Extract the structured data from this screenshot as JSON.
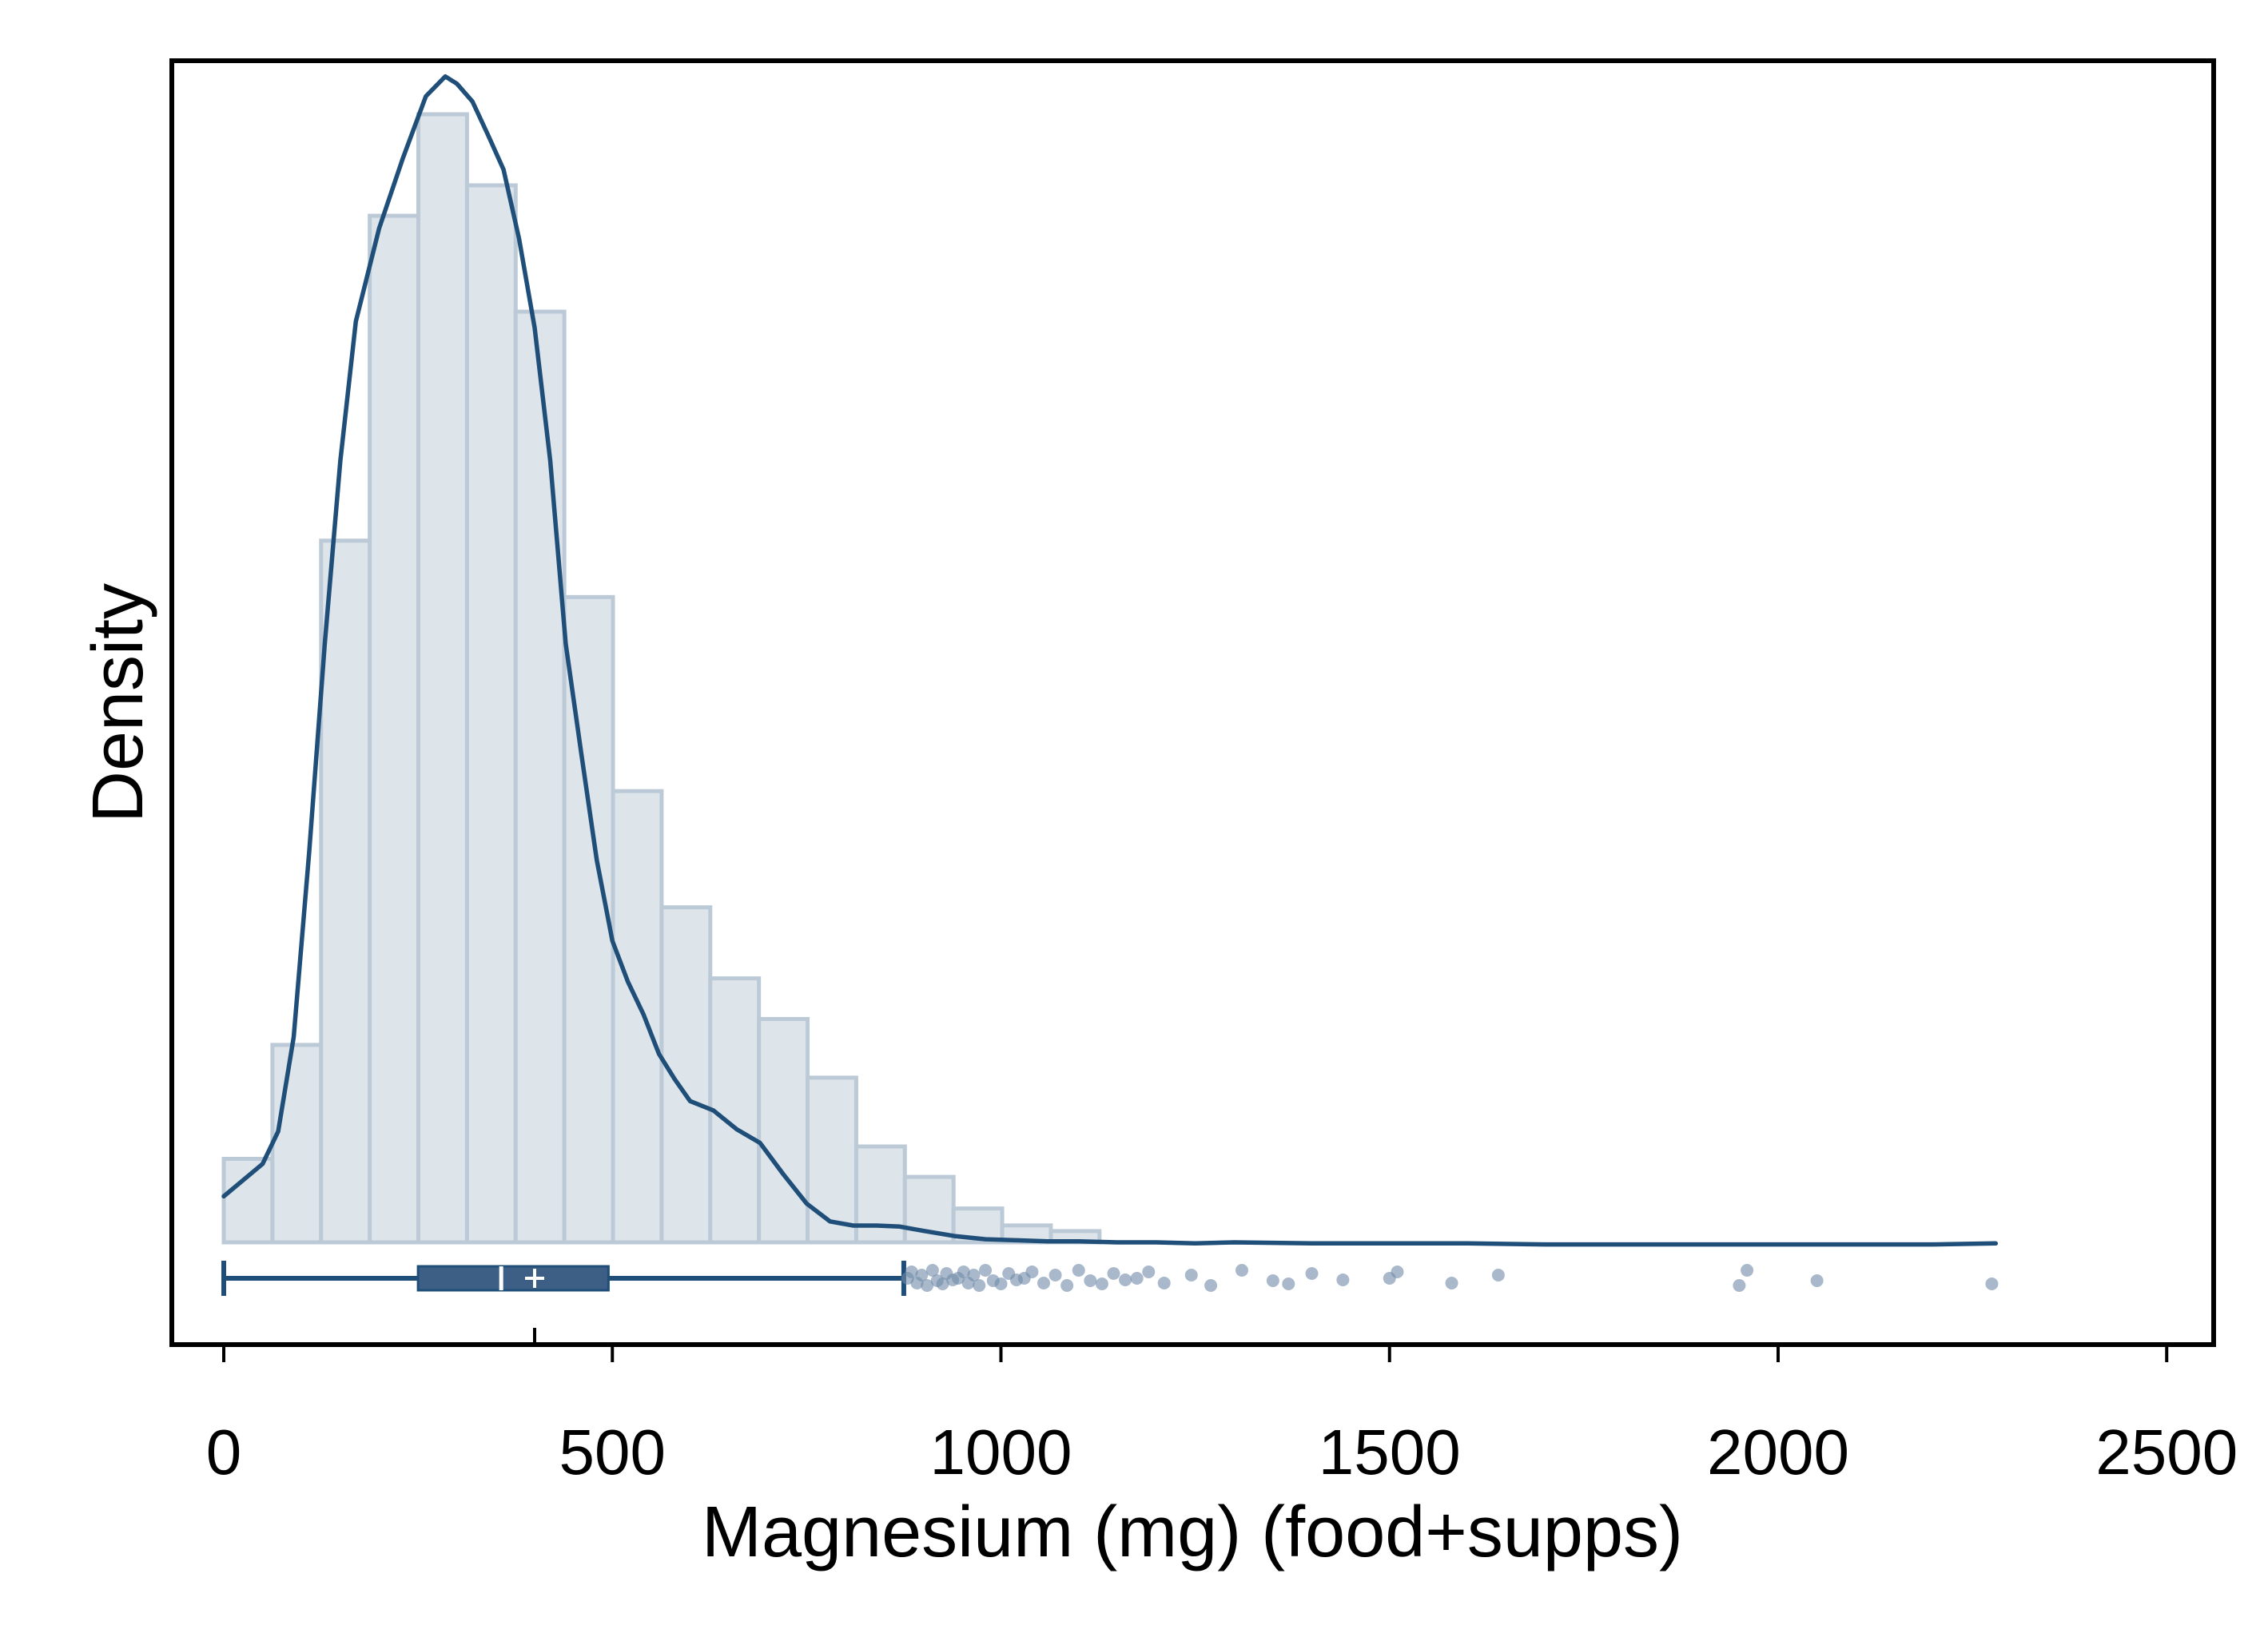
{
  "chart_data": {
    "type": "histogram",
    "title": "",
    "xlabel": "Magnesium (mg) (food+supps)",
    "ylabel": "Density",
    "xlim": [
      -70,
      2560
    ],
    "x_ticks": [
      0,
      500,
      1000,
      1500,
      2000,
      2500
    ],
    "x_tick_labels": [
      "0",
      "500",
      "1000",
      "1500",
      "2000",
      "2500"
    ],
    "y_ticks_shown": false,
    "grid": false,
    "legend": "none",
    "colors": {
      "bar_fill": "#dde4ea",
      "bar_stroke": "#bccad7",
      "line": "#1f4e79",
      "box_fill": "#3d5f86",
      "outlier": "#6f8ba8"
    },
    "histogram": {
      "bin_start": 0,
      "bin_width": 62.6,
      "relative_heights": [
        0.074,
        0.175,
        0.622,
        0.91,
        1.0,
        0.937,
        0.825,
        0.572,
        0.4,
        0.297,
        0.234,
        0.198,
        0.146,
        0.085,
        0.058,
        0.03,
        0.015,
        0.01
      ]
    },
    "density_curve": {
      "x": [
        0,
        50,
        70,
        90,
        110,
        130,
        150,
        170,
        200,
        230,
        260,
        285,
        300,
        320,
        340,
        360,
        380,
        400,
        420,
        440,
        460,
        480,
        500,
        520,
        540,
        560,
        580,
        600,
        630,
        660,
        690,
        720,
        750,
        780,
        810,
        840,
        870,
        900,
        940,
        980,
        1020,
        1060,
        1100,
        1150,
        1200,
        1250,
        1300,
        1400,
        1500,
        1600,
        1700,
        1800,
        1900,
        2000,
        2100,
        2200,
        2280
      ],
      "relative_density": [
        0.044,
        0.075,
        0.106,
        0.196,
        0.374,
        0.572,
        0.747,
        0.88,
        0.969,
        1.035,
        1.095,
        1.114,
        1.107,
        1.09,
        1.058,
        1.025,
        0.959,
        0.874,
        0.747,
        0.572,
        0.467,
        0.365,
        0.288,
        0.249,
        0.218,
        0.18,
        0.156,
        0.135,
        0.126,
        0.108,
        0.095,
        0.065,
        0.037,
        0.02,
        0.016,
        0.016,
        0.015,
        0.011,
        0.006,
        0.003,
        0.002,
        0.001,
        0.001,
        0.0,
        0.0,
        -0.001,
        0.0,
        -0.001,
        -0.001,
        -0.001,
        -0.002,
        -0.002,
        -0.002,
        -0.002,
        -0.002,
        -0.002,
        -0.001
      ]
    },
    "boxplot": {
      "whisker_low": 0,
      "q1": 250,
      "median": 357,
      "mean": 400,
      "q3": 495,
      "whisker_high": 875,
      "outliers": [
        880,
        885,
        892,
        898,
        905,
        912,
        918,
        925,
        930,
        938,
        945,
        952,
        958,
        965,
        972,
        980,
        990,
        1000,
        1010,
        1020,
        1030,
        1040,
        1055,
        1070,
        1085,
        1100,
        1115,
        1130,
        1145,
        1160,
        1175,
        1190,
        1210,
        1245,
        1270,
        1310,
        1350,
        1370,
        1400,
        1440,
        1500,
        1510,
        1580,
        1640,
        1950,
        1960,
        2050,
        2275
      ]
    }
  }
}
